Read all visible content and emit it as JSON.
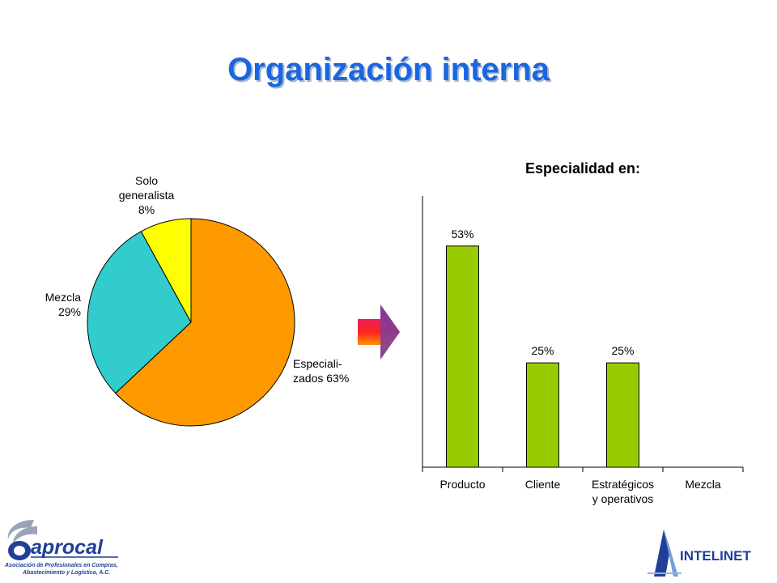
{
  "slide": {
    "title": "Organización interna"
  },
  "chart_data": [
    {
      "type": "pie",
      "slices": [
        {
          "label_lines": [
            "Especiali-",
            "zados 63%"
          ],
          "value": 63,
          "color": "#ff9900"
        },
        {
          "label_lines": [
            "Mezcla",
            "29%"
          ],
          "value": 29,
          "color": "#33cccc"
        },
        {
          "label_lines": [
            "Solo",
            "generalista",
            "8%"
          ],
          "value": 8,
          "color": "#ffff00"
        }
      ]
    },
    {
      "type": "bar",
      "title": "Especialidad en:",
      "categories": [
        {
          "lines": [
            "Producto"
          ]
        },
        {
          "lines": [
            "Cliente"
          ]
        },
        {
          "lines": [
            "Estratégicos",
            "y operativos"
          ]
        },
        {
          "lines": [
            "Mezcla"
          ]
        }
      ],
      "values": [
        53,
        25,
        25,
        null
      ],
      "data_labels": [
        "53%",
        "25%",
        "25%",
        ""
      ],
      "bar_color": "#99cc00",
      "ylim": [
        0,
        65
      ],
      "grid": false
    }
  ],
  "logos": {
    "left": {
      "name": "aprocal",
      "subtitle_lines": [
        "Asociación de Profesionales en Compras,",
        "Abastecimiento y Logística, A.C."
      ]
    },
    "right": {
      "name": "INTELINET"
    }
  },
  "arrow": {
    "icon": "right-arrow-icon"
  }
}
